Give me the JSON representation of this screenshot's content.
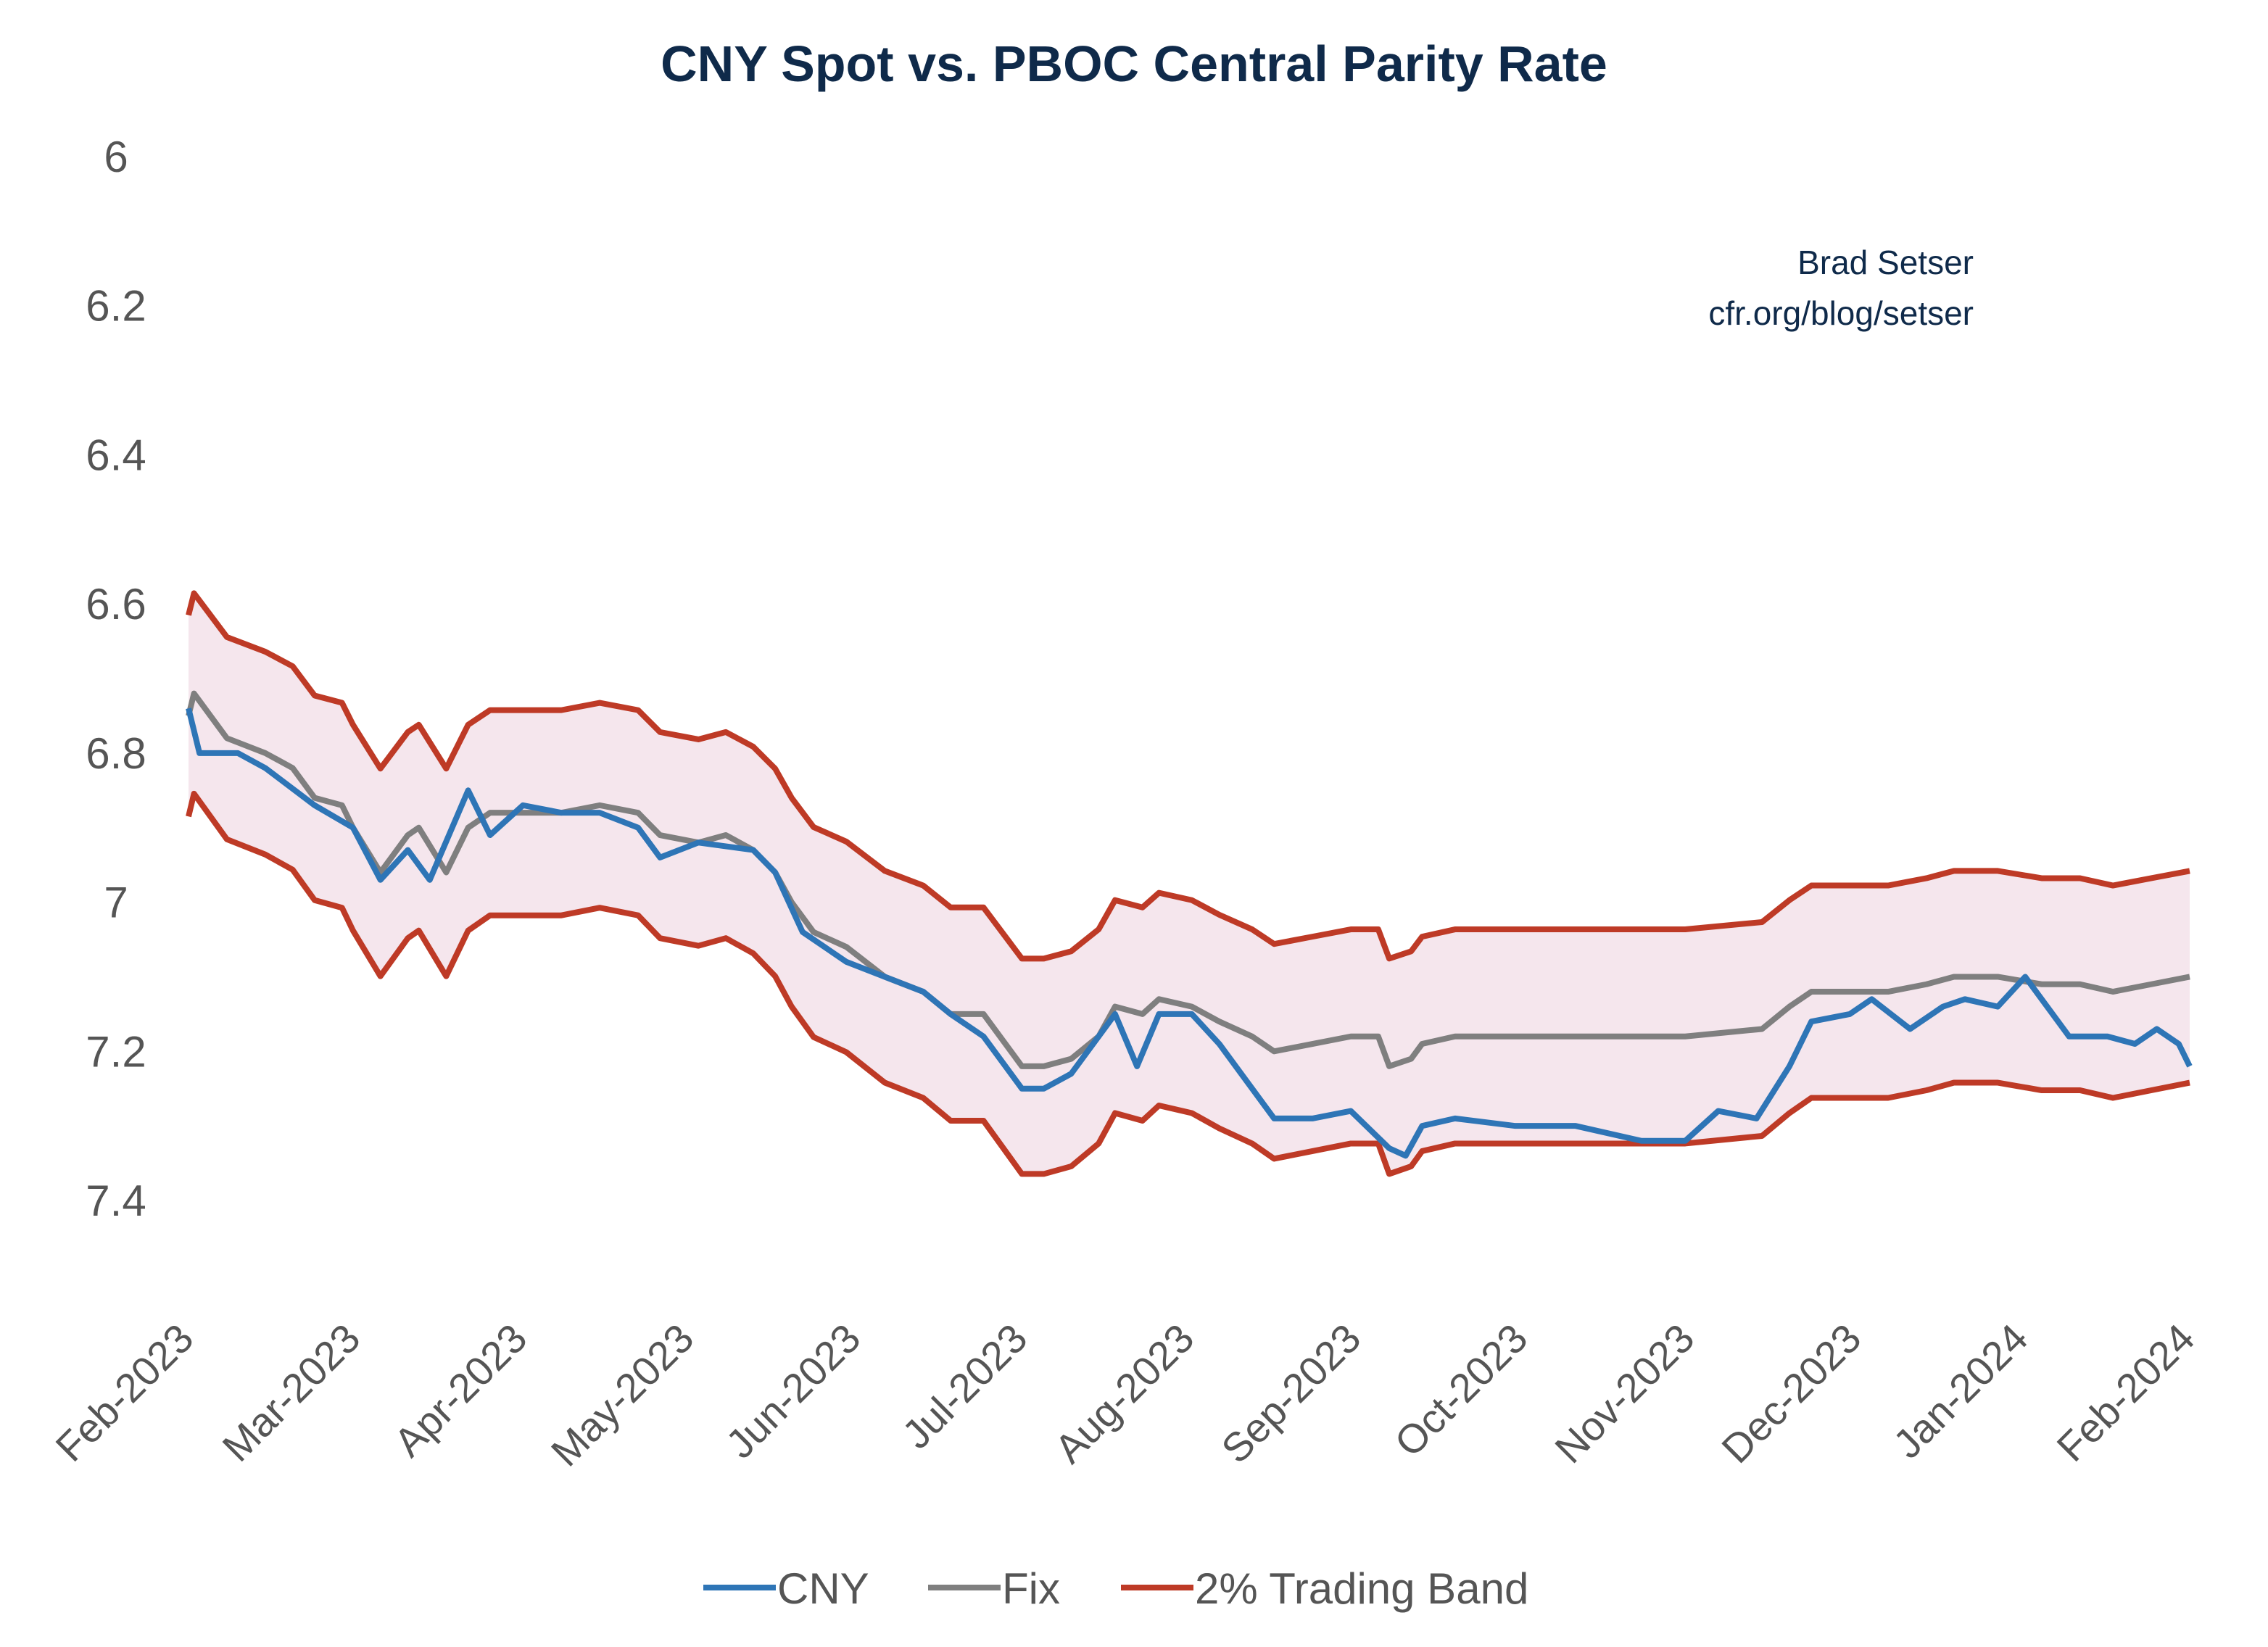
{
  "chart_data": {
    "type": "line",
    "title": "CNY Spot vs. PBOC Central Parity Rate",
    "annotation": [
      "Brad Setser",
      "cfr.org/blog/setser"
    ],
    "y_axis": {
      "inverted": true,
      "ylim": [
        6,
        7.55
      ],
      "ticks": [
        "6",
        "6.2",
        "6.4",
        "6.6",
        "6.8",
        "7",
        "7.2",
        "7.4"
      ],
      "tick_values": [
        6,
        6.2,
        6.4,
        6.6,
        6.8,
        7,
        7.2,
        7.4
      ]
    },
    "x_axis": {
      "ticks": [
        "Feb-2023",
        "Mar-2023",
        "Apr-2023",
        "May-2023",
        "Jun-2023",
        "Jul-2023",
        "Aug-2023",
        "Sep-2023",
        "Oct-2023",
        "Nov-2023",
        "Dec-2023",
        "Jan-2024",
        "Feb-2024"
      ],
      "range": [
        "2023-02-01",
        "2024-02-01"
      ]
    },
    "grid": false,
    "legend": {
      "placement": "bottom",
      "entries": [
        "CNY",
        "Fix",
        "2% Trading Band"
      ]
    },
    "band_pct": 0.02,
    "colors": {
      "CNY": "#2e75b6",
      "Fix": "#7f7f7f",
      "band": "#be3a26",
      "band_fill": "#f5e6ed"
    },
    "series": [
      {
        "name": "CNY",
        "points": [
          [
            "2023-02-01",
            6.74
          ],
          [
            "2023-02-03",
            6.8
          ],
          [
            "2023-02-10",
            6.8
          ],
          [
            "2023-02-15",
            6.82
          ],
          [
            "2023-02-24",
            6.87
          ],
          [
            "2023-03-03",
            6.9
          ],
          [
            "2023-03-08",
            6.97
          ],
          [
            "2023-03-13",
            6.93
          ],
          [
            "2023-03-17",
            6.97
          ],
          [
            "2023-03-24",
            6.85
          ],
          [
            "2023-03-28",
            6.91
          ],
          [
            "2023-04-03",
            6.87
          ],
          [
            "2023-04-10",
            6.88
          ],
          [
            "2023-04-17",
            6.88
          ],
          [
            "2023-04-24",
            6.9
          ],
          [
            "2023-04-28",
            6.94
          ],
          [
            "2023-05-05",
            6.92
          ],
          [
            "2023-05-15",
            6.93
          ],
          [
            "2023-05-19",
            6.96
          ],
          [
            "2023-05-24",
            7.04
          ],
          [
            "2023-06-01",
            7.08
          ],
          [
            "2023-06-08",
            7.1
          ],
          [
            "2023-06-15",
            7.12
          ],
          [
            "2023-06-20",
            7.15
          ],
          [
            "2023-06-26",
            7.18
          ],
          [
            "2023-07-03",
            7.25
          ],
          [
            "2023-07-07",
            7.25
          ],
          [
            "2023-07-12",
            7.23
          ],
          [
            "2023-07-17",
            7.18
          ],
          [
            "2023-07-20",
            7.15
          ],
          [
            "2023-07-24",
            7.22
          ],
          [
            "2023-07-28",
            7.15
          ],
          [
            "2023-08-03",
            7.15
          ],
          [
            "2023-08-08",
            7.19
          ],
          [
            "2023-08-14",
            7.25
          ],
          [
            "2023-08-18",
            7.29
          ],
          [
            "2023-08-25",
            7.29
          ],
          [
            "2023-09-01",
            7.28
          ],
          [
            "2023-09-08",
            7.33
          ],
          [
            "2023-09-11",
            7.34
          ],
          [
            "2023-09-14",
            7.3
          ],
          [
            "2023-09-20",
            7.29
          ],
          [
            "2023-10-01",
            7.3
          ],
          [
            "2023-10-12",
            7.3
          ],
          [
            "2023-10-24",
            7.32
          ],
          [
            "2023-11-01",
            7.32
          ],
          [
            "2023-11-07",
            7.28
          ],
          [
            "2023-11-14",
            7.29
          ],
          [
            "2023-11-20",
            7.22
          ],
          [
            "2023-11-24",
            7.16
          ],
          [
            "2023-12-01",
            7.15
          ],
          [
            "2023-12-05",
            7.13
          ],
          [
            "2023-12-12",
            7.17
          ],
          [
            "2023-12-18",
            7.14
          ],
          [
            "2023-12-22",
            7.13
          ],
          [
            "2023-12-28",
            7.14
          ],
          [
            "2024-01-02",
            7.1
          ],
          [
            "2024-01-10",
            7.18
          ],
          [
            "2024-01-17",
            7.18
          ],
          [
            "2024-01-22",
            7.19
          ],
          [
            "2024-01-26",
            7.17
          ],
          [
            "2024-01-30",
            7.19
          ],
          [
            "2024-02-01",
            7.22
          ]
        ]
      },
      {
        "name": "Fix",
        "points": [
          [
            "2023-02-01",
            6.75
          ],
          [
            "2023-02-02",
            6.72
          ],
          [
            "2023-02-08",
            6.78
          ],
          [
            "2023-02-15",
            6.8
          ],
          [
            "2023-02-20",
            6.82
          ],
          [
            "2023-02-24",
            6.86
          ],
          [
            "2023-03-01",
            6.87
          ],
          [
            "2023-03-03",
            6.9
          ],
          [
            "2023-03-08",
            6.96
          ],
          [
            "2023-03-13",
            6.91
          ],
          [
            "2023-03-15",
            6.9
          ],
          [
            "2023-03-20",
            6.96
          ],
          [
            "2023-03-24",
            6.9
          ],
          [
            "2023-03-28",
            6.88
          ],
          [
            "2023-04-03",
            6.88
          ],
          [
            "2023-04-10",
            6.88
          ],
          [
            "2023-04-17",
            6.87
          ],
          [
            "2023-04-24",
            6.88
          ],
          [
            "2023-04-28",
            6.91
          ],
          [
            "2023-05-05",
            6.92
          ],
          [
            "2023-05-10",
            6.91
          ],
          [
            "2023-05-15",
            6.93
          ],
          [
            "2023-05-19",
            6.96
          ],
          [
            "2023-05-22",
            7.0
          ],
          [
            "2023-05-26",
            7.04
          ],
          [
            "2023-06-01",
            7.06
          ],
          [
            "2023-06-08",
            7.1
          ],
          [
            "2023-06-15",
            7.12
          ],
          [
            "2023-06-20",
            7.15
          ],
          [
            "2023-06-26",
            7.15
          ],
          [
            "2023-07-03",
            7.22
          ],
          [
            "2023-07-07",
            7.22
          ],
          [
            "2023-07-12",
            7.21
          ],
          [
            "2023-07-17",
            7.18
          ],
          [
            "2023-07-20",
            7.14
          ],
          [
            "2023-07-25",
            7.15
          ],
          [
            "2023-07-28",
            7.13
          ],
          [
            "2023-08-03",
            7.14
          ],
          [
            "2023-08-08",
            7.16
          ],
          [
            "2023-08-14",
            7.18
          ],
          [
            "2023-08-18",
            7.2
          ],
          [
            "2023-08-25",
            7.19
          ],
          [
            "2023-09-01",
            7.18
          ],
          [
            "2023-09-06",
            7.18
          ],
          [
            "2023-09-08",
            7.22
          ],
          [
            "2023-09-12",
            7.21
          ],
          [
            "2023-09-14",
            7.19
          ],
          [
            "2023-09-20",
            7.18
          ],
          [
            "2023-10-01",
            7.18
          ],
          [
            "2023-11-01",
            7.18
          ],
          [
            "2023-11-15",
            7.17
          ],
          [
            "2023-11-20",
            7.14
          ],
          [
            "2023-11-24",
            7.12
          ],
          [
            "2023-12-01",
            7.12
          ],
          [
            "2023-12-08",
            7.12
          ],
          [
            "2023-12-15",
            7.11
          ],
          [
            "2023-12-20",
            7.1
          ],
          [
            "2023-12-28",
            7.1
          ],
          [
            "2024-01-05",
            7.11
          ],
          [
            "2024-01-12",
            7.11
          ],
          [
            "2024-01-18",
            7.12
          ],
          [
            "2024-01-25",
            7.11
          ],
          [
            "2024-02-01",
            7.1
          ]
        ]
      }
    ]
  }
}
